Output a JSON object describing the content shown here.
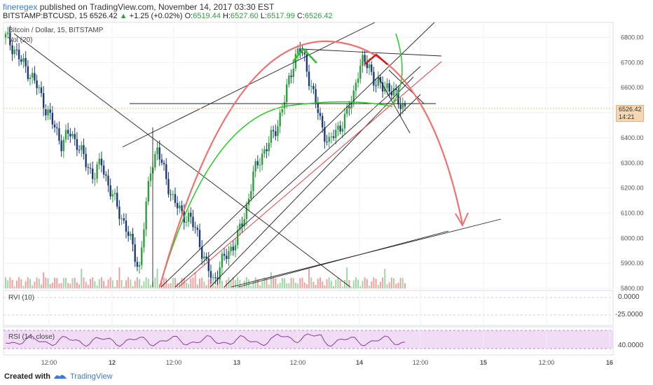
{
  "header": {
    "username": "fineregex",
    "published_text": "published on TradingView.com, November 14, 2017 03:30 EST",
    "symbol": "BITSTAMP:BTCUSD, 15",
    "last": "6526.42",
    "change": "+1.25 (+0.02%)",
    "o_label": "O:",
    "o_value": "6519.44",
    "h_label": "H:",
    "h_value": "6527.60",
    "l_label": "L:",
    "l_value": "6517.99",
    "c_label": "C:",
    "c_value": "6526.42"
  },
  "panes": {
    "main_title": "Bitcoin / Dollar, 15, BITSTAMP",
    "vol_label": "Vol (20)",
    "rvi_label": "RVI (10)",
    "rsi_label": "RSI (14, close)"
  },
  "price_tag": {
    "price": "6526.42",
    "timer": "14:21"
  },
  "footer": {
    "created_with": "Created with",
    "brand": "TradingView"
  },
  "colors": {
    "up": "#2e9e3e",
    "down": "#1a3a7a",
    "projection": "#f07070",
    "support": "#22cc22",
    "rsi_line": "#8a3aa0",
    "rsi_band": "#f0dcf5"
  },
  "chart_data": {
    "type": "candlestick",
    "title": "Bitcoin / Dollar, 15, BITSTAMP",
    "x_ticks": [
      "12:00",
      "12",
      "12:00",
      "13",
      "12:00",
      "14",
      "12:00",
      "15",
      "12:00",
      "16"
    ],
    "y_ticks": [
      6800,
      6700,
      6600,
      6500,
      6400,
      6300,
      6200,
      6100,
      6000,
      5900,
      5800
    ],
    "ylim": [
      5800,
      6860
    ],
    "last_price": 6526.42,
    "rvi_ticks": [
      "0.0000",
      "-25.0000"
    ],
    "rsi_ticks": [
      "40.0000"
    ],
    "price_path": [
      [
        0.005,
        6790
      ],
      [
        0.02,
        6760
      ],
      [
        0.04,
        6700
      ],
      [
        0.06,
        6660
      ],
      [
        0.08,
        6600
      ],
      [
        0.1,
        6520
      ],
      [
        0.12,
        6450
      ],
      [
        0.14,
        6380
      ],
      [
        0.16,
        6420
      ],
      [
        0.18,
        6380
      ],
      [
        0.2,
        6300
      ],
      [
        0.22,
        6250
      ],
      [
        0.24,
        6300
      ],
      [
        0.26,
        6200
      ],
      [
        0.28,
        6120
      ],
      [
        0.3,
        6050
      ],
      [
        0.32,
        5950
      ],
      [
        0.335,
        5880
      ],
      [
        0.35,
        6100
      ],
      [
        0.365,
        6300
      ],
      [
        0.38,
        6350
      ],
      [
        0.4,
        6250
      ],
      [
        0.42,
        6150
      ],
      [
        0.44,
        6100
      ],
      [
        0.46,
        6080
      ],
      [
        0.48,
        6020
      ],
      [
        0.5,
        5900
      ],
      [
        0.52,
        5830
      ],
      [
        0.54,
        5900
      ],
      [
        0.56,
        5950
      ],
      [
        0.58,
        6000
      ],
      [
        0.6,
        6100
      ],
      [
        0.62,
        6250
      ],
      [
        0.64,
        6330
      ],
      [
        0.66,
        6380
      ],
      [
        0.68,
        6450
      ],
      [
        0.7,
        6560
      ],
      [
        0.72,
        6700
      ],
      [
        0.735,
        6760
      ],
      [
        0.75,
        6700
      ],
      [
        0.77,
        6580
      ],
      [
        0.79,
        6450
      ],
      [
        0.81,
        6380
      ],
      [
        0.83,
        6430
      ],
      [
        0.85,
        6480
      ],
      [
        0.87,
        6560
      ],
      [
        0.88,
        6660
      ],
      [
        0.895,
        6700
      ],
      [
        0.91,
        6690
      ],
      [
        0.925,
        6620
      ],
      [
        0.94,
        6600
      ],
      [
        0.955,
        6610
      ],
      [
        0.97,
        6580
      ],
      [
        0.985,
        6540
      ],
      [
        1.0,
        6526
      ]
    ]
  }
}
